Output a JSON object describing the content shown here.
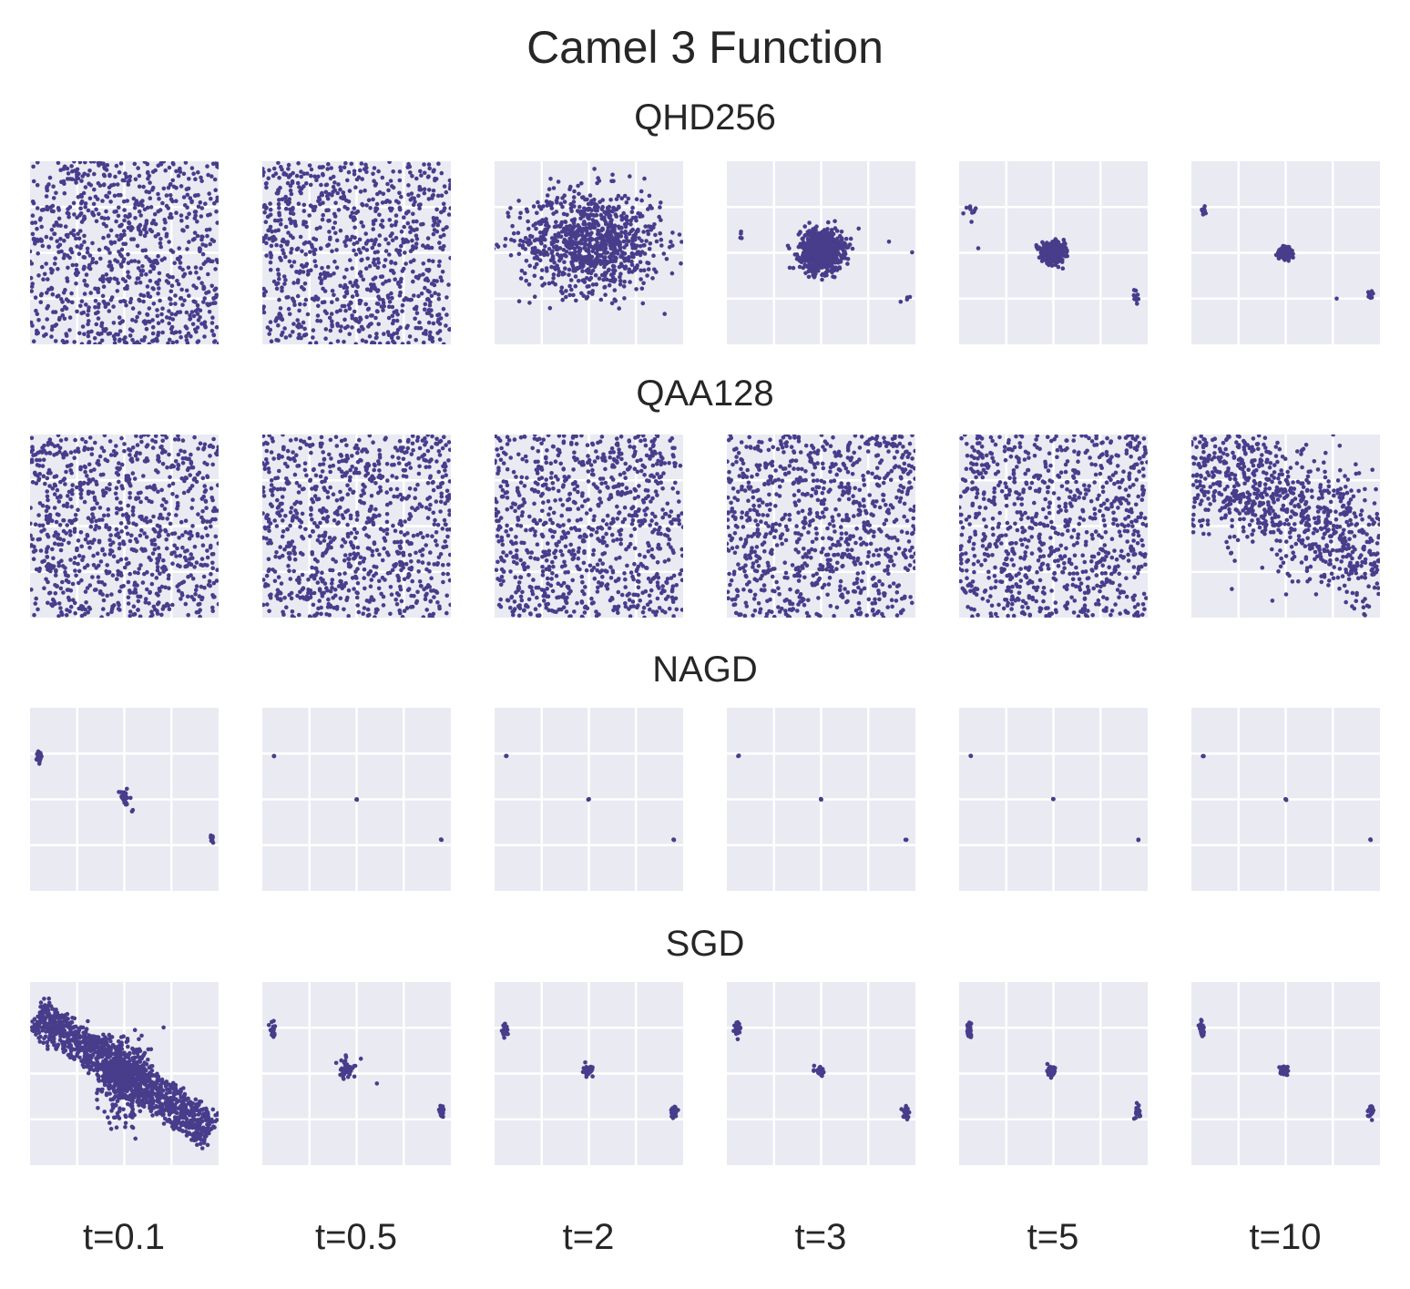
{
  "chart_data": {
    "type": "scatter",
    "title": "Camel 3 Function",
    "rows": [
      {
        "title": "QHD256"
      },
      {
        "title": "QAA128"
      },
      {
        "title": "NAGD"
      },
      {
        "title": "SGD"
      }
    ],
    "columns": [
      "t=0.1",
      "t=0.5",
      "t=2",
      "t=3",
      "t=5",
      "t=10"
    ],
    "xlim": [
      -2,
      2
    ],
    "ylim": [
      -2,
      2
    ],
    "grid_ticks": [
      -1,
      0,
      1
    ],
    "grid": true,
    "marker_color": "#473d8b",
    "background_color": "#eaeaf2",
    "grid_color": "#ffffff",
    "panels": [
      [
        {
          "kind": "uniform",
          "n": 900,
          "clusters": []
        },
        {
          "kind": "uniform",
          "n": 900,
          "clusters": []
        },
        {
          "kind": "clusters",
          "n": 0,
          "clusters": [
            {
              "cx": 0.05,
              "cy": 0.25,
              "sx": 0.75,
              "sy": 0.55,
              "n": 900
            }
          ]
        },
        {
          "kind": "clusters",
          "n": 0,
          "clusters": [
            {
              "cx": 0.0,
              "cy": 0.05,
              "sx": 0.22,
              "sy": 0.22,
              "n": 800
            },
            {
              "cx": -1.7,
              "cy": 0.5,
              "sx": 0.02,
              "sy": 0.15,
              "n": 4
            },
            {
              "cx": 1.8,
              "cy": -1.0,
              "sx": 0.08,
              "sy": 0.05,
              "n": 4
            },
            {
              "cx": 1.45,
              "cy": 0.25,
              "sx": 0.02,
              "sy": 0.02,
              "n": 1
            },
            {
              "cx": 1.95,
              "cy": 0.05,
              "sx": 0.02,
              "sy": 0.02,
              "n": 1
            }
          ]
        },
        {
          "kind": "clusters",
          "n": 0,
          "clusters": [
            {
              "cx": 0.0,
              "cy": 0.0,
              "sx": 0.12,
              "sy": 0.1,
              "n": 500
            },
            {
              "cx": -1.75,
              "cy": 0.95,
              "sx": 0.06,
              "sy": 0.08,
              "n": 10
            },
            {
              "cx": 1.75,
              "cy": -0.95,
              "sx": 0.06,
              "sy": 0.08,
              "n": 10
            },
            {
              "cx": -1.6,
              "cy": 0.1,
              "sx": 0.02,
              "sy": 0.02,
              "n": 1
            }
          ]
        },
        {
          "kind": "clusters",
          "n": 0,
          "clusters": [
            {
              "cx": 0.0,
              "cy": 0.0,
              "sx": 0.06,
              "sy": 0.05,
              "n": 300
            },
            {
              "cx": -1.75,
              "cy": 0.92,
              "sx": 0.03,
              "sy": 0.05,
              "n": 15
            },
            {
              "cx": 1.8,
              "cy": -0.92,
              "sx": 0.03,
              "sy": 0.05,
              "n": 15
            },
            {
              "cx": 1.1,
              "cy": -1.0,
              "sx": 0.02,
              "sy": 0.02,
              "n": 1
            }
          ]
        }
      ],
      [
        {
          "kind": "uniform",
          "n": 900,
          "clusters": []
        },
        {
          "kind": "uniform",
          "n": 900,
          "clusters": []
        },
        {
          "kind": "uniform",
          "n": 900,
          "clusters": []
        },
        {
          "kind": "uniform",
          "n": 900,
          "clusters": []
        },
        {
          "kind": "uniform",
          "n": 900,
          "clusters": []
        },
        {
          "kind": "skew",
          "n": 900,
          "clusters": []
        }
      ],
      [
        {
          "kind": "clusters",
          "n": 0,
          "clusters": [
            {
              "cx": -1.8,
              "cy": 0.95,
              "sx": 0.03,
              "sy": 0.06,
              "n": 20
            },
            {
              "cx": 0.0,
              "cy": 0.05,
              "sx": 0.05,
              "sy": 0.1,
              "n": 25
            },
            {
              "cx": 1.85,
              "cy": -0.85,
              "sx": 0.02,
              "sy": 0.04,
              "n": 15
            },
            {
              "cx": 0.15,
              "cy": -0.25,
              "sx": 0.02,
              "sy": 0.02,
              "n": 2
            }
          ]
        },
        {
          "kind": "clusters",
          "n": 0,
          "clusters": [
            {
              "cx": -1.75,
              "cy": 0.95,
              "sx": 0.005,
              "sy": 0.005,
              "n": 3
            },
            {
              "cx": 0.0,
              "cy": 0.0,
              "sx": 0.005,
              "sy": 0.005,
              "n": 3
            },
            {
              "cx": 1.8,
              "cy": -0.88,
              "sx": 0.005,
              "sy": 0.005,
              "n": 3
            }
          ]
        },
        {
          "kind": "clusters",
          "n": 0,
          "clusters": [
            {
              "cx": -1.75,
              "cy": 0.95,
              "sx": 0.005,
              "sy": 0.005,
              "n": 3
            },
            {
              "cx": 0.0,
              "cy": 0.0,
              "sx": 0.005,
              "sy": 0.005,
              "n": 3
            },
            {
              "cx": 1.8,
              "cy": -0.88,
              "sx": 0.005,
              "sy": 0.005,
              "n": 3
            }
          ]
        },
        {
          "kind": "clusters",
          "n": 0,
          "clusters": [
            {
              "cx": -1.75,
              "cy": 0.95,
              "sx": 0.005,
              "sy": 0.005,
              "n": 3
            },
            {
              "cx": 0.0,
              "cy": 0.0,
              "sx": 0.005,
              "sy": 0.005,
              "n": 3
            },
            {
              "cx": 1.8,
              "cy": -0.88,
              "sx": 0.005,
              "sy": 0.005,
              "n": 3
            }
          ]
        },
        {
          "kind": "clusters",
          "n": 0,
          "clusters": [
            {
              "cx": -1.75,
              "cy": 0.95,
              "sx": 0.005,
              "sy": 0.005,
              "n": 3
            },
            {
              "cx": 0.0,
              "cy": 0.0,
              "sx": 0.005,
              "sy": 0.005,
              "n": 3
            },
            {
              "cx": 1.8,
              "cy": -0.88,
              "sx": 0.005,
              "sy": 0.005,
              "n": 3
            }
          ]
        },
        {
          "kind": "clusters",
          "n": 0,
          "clusters": [
            {
              "cx": -1.75,
              "cy": 0.95,
              "sx": 0.005,
              "sy": 0.005,
              "n": 3
            },
            {
              "cx": 0.0,
              "cy": 0.0,
              "sx": 0.005,
              "sy": 0.005,
              "n": 3
            },
            {
              "cx": 1.8,
              "cy": -0.88,
              "sx": 0.005,
              "sy": 0.005,
              "n": 3
            }
          ]
        }
      ],
      [
        {
          "kind": "band",
          "n": 1200,
          "clusters": []
        },
        {
          "kind": "clusters",
          "n": 0,
          "clusters": [
            {
              "cx": -1.78,
              "cy": 0.95,
              "sx": 0.03,
              "sy": 0.08,
              "n": 30
            },
            {
              "cx": -0.2,
              "cy": 0.12,
              "sx": 0.09,
              "sy": 0.12,
              "n": 40
            },
            {
              "cx": 1.8,
              "cy": -0.85,
              "sx": 0.03,
              "sy": 0.07,
              "n": 30
            },
            {
              "cx": 0.45,
              "cy": -0.25,
              "sx": 0.02,
              "sy": 0.02,
              "n": 1
            }
          ]
        },
        {
          "kind": "clusters",
          "n": 0,
          "clusters": [
            {
              "cx": -1.78,
              "cy": 0.95,
              "sx": 0.03,
              "sy": 0.08,
              "n": 30
            },
            {
              "cx": -0.02,
              "cy": 0.05,
              "sx": 0.05,
              "sy": 0.05,
              "n": 40
            },
            {
              "cx": 1.8,
              "cy": -0.85,
              "sx": 0.03,
              "sy": 0.07,
              "n": 30
            }
          ]
        },
        {
          "kind": "clusters",
          "n": 0,
          "clusters": [
            {
              "cx": -1.78,
              "cy": 0.95,
              "sx": 0.03,
              "sy": 0.08,
              "n": 30
            },
            {
              "cx": -0.02,
              "cy": 0.05,
              "sx": 0.05,
              "sy": 0.05,
              "n": 40
            },
            {
              "cx": 1.8,
              "cy": -0.85,
              "sx": 0.03,
              "sy": 0.07,
              "n": 30
            }
          ]
        },
        {
          "kind": "clusters",
          "n": 0,
          "clusters": [
            {
              "cx": -1.78,
              "cy": 0.95,
              "sx": 0.03,
              "sy": 0.08,
              "n": 30
            },
            {
              "cx": -0.02,
              "cy": 0.05,
              "sx": 0.05,
              "sy": 0.05,
              "n": 40
            },
            {
              "cx": 1.8,
              "cy": -0.85,
              "sx": 0.03,
              "sy": 0.07,
              "n": 30
            }
          ]
        },
        {
          "kind": "clusters",
          "n": 0,
          "clusters": [
            {
              "cx": -1.78,
              "cy": 0.95,
              "sx": 0.03,
              "sy": 0.08,
              "n": 30
            },
            {
              "cx": -0.02,
              "cy": 0.05,
              "sx": 0.05,
              "sy": 0.05,
              "n": 40
            },
            {
              "cx": 1.8,
              "cy": -0.85,
              "sx": 0.03,
              "sy": 0.07,
              "n": 30
            }
          ]
        }
      ]
    ]
  }
}
